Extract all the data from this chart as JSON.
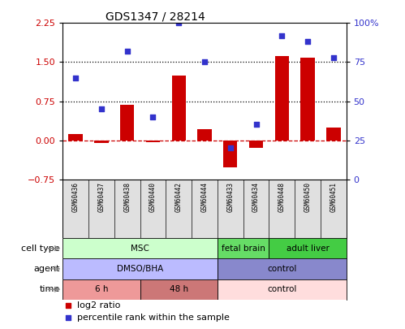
{
  "title": "GDS1347 / 28214",
  "samples": [
    "GSM60436",
    "GSM60437",
    "GSM60438",
    "GSM60440",
    "GSM60442",
    "GSM60444",
    "GSM60433",
    "GSM60434",
    "GSM60448",
    "GSM60450",
    "GSM60451"
  ],
  "log2_ratio": [
    0.12,
    -0.05,
    0.68,
    -0.03,
    1.25,
    0.22,
    -0.52,
    -0.15,
    1.62,
    1.58,
    0.25
  ],
  "pct_rank": [
    65,
    45,
    82,
    40,
    100,
    75,
    20,
    35,
    92,
    88,
    78
  ],
  "ylim_left": [
    -0.75,
    2.25
  ],
  "ylim_right": [
    0,
    100
  ],
  "yticks_left": [
    -0.75,
    0,
    0.75,
    1.5,
    2.25
  ],
  "yticks_right": [
    0,
    25,
    50,
    75,
    100
  ],
  "hlines": [
    0.75,
    1.5
  ],
  "bar_color": "#cc0000",
  "dot_color": "#3333cc",
  "zero_line_color": "#cc0000",
  "cell_type_groups": [
    {
      "label": "MSC",
      "start": 0,
      "end": 5,
      "color": "#ccffcc",
      "text_color": "#000000"
    },
    {
      "label": "fetal brain",
      "start": 6,
      "end": 7,
      "color": "#66dd66",
      "text_color": "#000000"
    },
    {
      "label": "adult liver",
      "start": 8,
      "end": 10,
      "color": "#44cc44",
      "text_color": "#000000"
    }
  ],
  "agent_groups": [
    {
      "label": "DMSO/BHA",
      "start": 0,
      "end": 5,
      "color": "#bbbbff",
      "text_color": "#000000"
    },
    {
      "label": "control",
      "start": 6,
      "end": 10,
      "color": "#8888cc",
      "text_color": "#000000"
    }
  ],
  "time_groups": [
    {
      "label": "6 h",
      "start": 0,
      "end": 2,
      "color": "#ee9999",
      "text_color": "#000000"
    },
    {
      "label": "48 h",
      "start": 3,
      "end": 5,
      "color": "#cc7777",
      "text_color": "#000000"
    },
    {
      "label": "control",
      "start": 6,
      "end": 10,
      "color": "#ffdddd",
      "text_color": "#000000"
    }
  ],
  "row_labels": [
    "cell type",
    "agent",
    "time"
  ],
  "legend_bar_label": "log2 ratio",
  "legend_dot_label": "percentile rank within the sample"
}
